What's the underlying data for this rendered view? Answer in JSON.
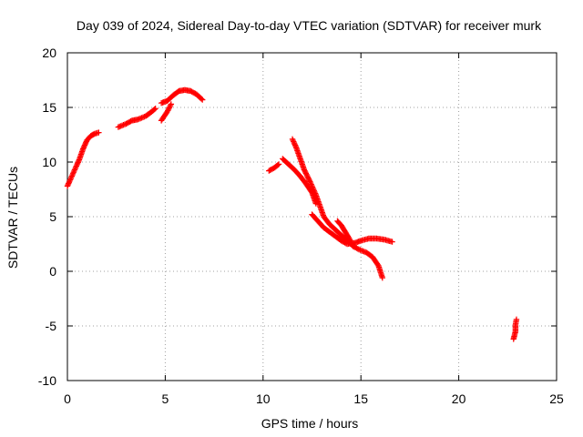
{
  "chart_data": {
    "type": "scatter",
    "title": "Day 039 of 2024, Sidereal Day-to-day VTEC variation (SDTVAR) for receiver murk",
    "xlabel": "GPS time / hours",
    "ylabel": "SDTVAR / TECUs",
    "xlim": [
      0,
      25
    ],
    "ylim": [
      -10,
      20
    ],
    "xticks": [
      0,
      5,
      10,
      15,
      20,
      25
    ],
    "yticks": [
      -10,
      -5,
      0,
      5,
      10,
      15,
      20
    ],
    "xtick_labels": [
      "0",
      "5",
      "10",
      "15",
      "20",
      "25"
    ],
    "ytick_labels": [
      "-10",
      "-5",
      "0",
      "5",
      "10",
      "15",
      "20"
    ],
    "grid": true,
    "legend": "none",
    "marker": "plus",
    "color": "#ff0000",
    "series": [
      {
        "segments": [
          [
            [
              0.0,
              7.8
            ],
            [
              0.2,
              8.6
            ],
            [
              0.4,
              9.4
            ],
            [
              0.6,
              10.2
            ],
            [
              0.8,
              11.2
            ],
            [
              1.0,
              12.0
            ],
            [
              1.2,
              12.4
            ],
            [
              1.4,
              12.6
            ],
            [
              1.6,
              12.7
            ]
          ],
          [
            [
              2.6,
              13.2
            ],
            [
              3.0,
              13.5
            ],
            [
              3.3,
              13.8
            ],
            [
              3.6,
              13.9
            ],
            [
              4.0,
              14.2
            ],
            [
              4.3,
              14.6
            ],
            [
              4.5,
              14.9
            ]
          ],
          [
            [
              4.8,
              13.8
            ],
            [
              5.1,
              14.6
            ],
            [
              5.3,
              15.3
            ]
          ],
          [
            [
              4.8,
              15.4
            ],
            [
              5.1,
              15.6
            ],
            [
              5.4,
              16.1
            ],
            [
              5.7,
              16.5
            ],
            [
              6.0,
              16.6
            ],
            [
              6.3,
              16.5
            ],
            [
              6.6,
              16.2
            ],
            [
              6.9,
              15.7
            ]
          ],
          [
            [
              10.3,
              9.2
            ],
            [
              10.6,
              9.5
            ],
            [
              10.8,
              9.8
            ]
          ],
          [
            [
              11.0,
              10.3
            ],
            [
              11.3,
              9.8
            ],
            [
              11.6,
              9.3
            ],
            [
              11.9,
              8.7
            ],
            [
              12.2,
              8.0
            ],
            [
              12.5,
              7.2
            ],
            [
              12.7,
              6.2
            ]
          ],
          [
            [
              11.5,
              12.1
            ],
            [
              11.7,
              11.3
            ],
            [
              11.9,
              10.3
            ],
            [
              12.1,
              9.3
            ],
            [
              12.4,
              8.2
            ],
            [
              12.7,
              7.0
            ],
            [
              12.9,
              6.0
            ],
            [
              13.1,
              5.0
            ],
            [
              13.4,
              4.3
            ],
            [
              13.7,
              3.8
            ],
            [
              14.0,
              3.3
            ],
            [
              14.3,
              2.8
            ],
            [
              14.6,
              2.3
            ],
            [
              14.9,
              2.0
            ],
            [
              15.3,
              1.7
            ],
            [
              15.6,
              1.3
            ],
            [
              15.9,
              0.5
            ],
            [
              16.1,
              -0.6
            ]
          ],
          [
            [
              12.5,
              5.2
            ],
            [
              12.8,
              4.6
            ],
            [
              13.1,
              4.0
            ],
            [
              13.4,
              3.6
            ],
            [
              13.7,
              3.2
            ],
            [
              14.0,
              2.8
            ],
            [
              14.3,
              2.5
            ],
            [
              14.7,
              2.6
            ],
            [
              15.0,
              2.8
            ],
            [
              15.4,
              3.0
            ],
            [
              15.8,
              3.0
            ],
            [
              16.2,
              2.9
            ],
            [
              16.6,
              2.7
            ]
          ],
          [
            [
              13.8,
              4.6
            ],
            [
              14.0,
              4.2
            ],
            [
              14.2,
              3.6
            ],
            [
              14.4,
              3.0
            ],
            [
              14.6,
              2.3
            ]
          ],
          [
            [
              22.8,
              -6.2
            ],
            [
              22.9,
              -5.5
            ],
            [
              22.9,
              -4.9
            ],
            [
              22.95,
              -4.4
            ]
          ]
        ]
      }
    ]
  }
}
